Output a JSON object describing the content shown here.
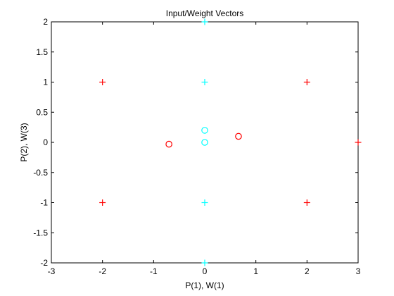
{
  "chart_data": {
    "type": "scatter",
    "title": "Input/Weight Vectors",
    "xlabel": "P(1), W(1)",
    "ylabel": "P(2), W(3)",
    "xlim": [
      -3,
      3
    ],
    "ylim": [
      -2,
      2
    ],
    "xticks": [
      "-3",
      "-2",
      "-1",
      "0",
      "1",
      "2",
      "3"
    ],
    "yticks": [
      "-2",
      "-1.5",
      "-1",
      "-0.5",
      "0",
      "0.5",
      "1",
      "1.5",
      "2"
    ],
    "grid": false,
    "legend": "none",
    "series": [
      {
        "marker": "plus",
        "color": "#ff0000",
        "points": [
          [
            -2,
            1
          ],
          [
            2,
            1
          ],
          [
            -2,
            -1
          ],
          [
            2,
            -1
          ],
          [
            3,
            0
          ]
        ]
      },
      {
        "marker": "plus",
        "color": "#00ffff",
        "points": [
          [
            0,
            2
          ],
          [
            0,
            1
          ],
          [
            0,
            -1
          ],
          [
            0,
            -2
          ]
        ]
      },
      {
        "marker": "circle",
        "color": "#ff0000",
        "points": [
          [
            -0.7,
            -0.03
          ],
          [
            0.66,
            0.1
          ]
        ]
      },
      {
        "marker": "circle",
        "color": "#00ffff",
        "points": [
          [
            0,
            0.2
          ],
          [
            0,
            0.0
          ]
        ]
      }
    ]
  }
}
